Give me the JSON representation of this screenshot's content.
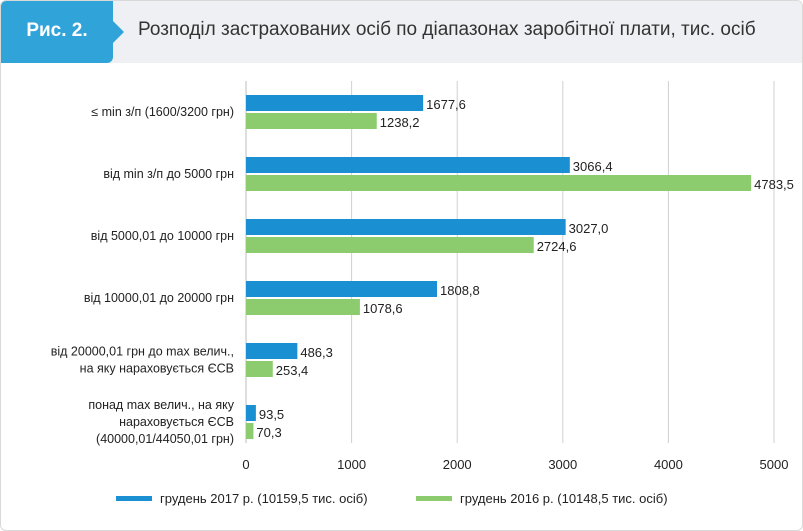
{
  "header": {
    "figure_label": "Рис. 2.",
    "title": "Розподіл застрахованих осіб по діапазонах заробітної плати, тис. осіб"
  },
  "chart_data": {
    "type": "bar",
    "orientation": "horizontal",
    "categories": [
      [
        "≤ min з/п (1600/3200 грн)"
      ],
      [
        "від min з/п до 5000 грн"
      ],
      [
        "від 5000,01 до 10000 грн"
      ],
      [
        "від 10000,01 до 20000 грн"
      ],
      [
        "від 20000,01 грн до max велич.,",
        "на яку нараховується ЄСВ"
      ],
      [
        "понад max велич., на яку",
        "нараховується ЄСВ",
        "(40000,01/44050,01 грн)"
      ]
    ],
    "series": [
      {
        "name": "грудень 2017 р. (10159,5 тис. осіб)",
        "color": "#1a8fd1",
        "values": [
          1677.6,
          3066.4,
          3027.0,
          1808.8,
          486.3,
          93.5
        ],
        "labels": [
          "1677,6",
          "3066,4",
          "3027,0",
          "1808,8",
          "486,3",
          "93,5"
        ]
      },
      {
        "name": "грудень 2016 р. (10148,5 тис. осіб)",
        "color": "#8ccb6e",
        "values": [
          1238.2,
          4783.5,
          2724.6,
          1078.6,
          253.4,
          70.3
        ],
        "labels": [
          "1238,2",
          "4783,5",
          "2724,6",
          "1078,6",
          "253,4",
          "70,3"
        ]
      }
    ],
    "xlim": [
      0,
      5000
    ],
    "xticks": [
      0,
      1000,
      2000,
      3000,
      4000,
      5000
    ],
    "xtick_labels": [
      "0",
      "1000",
      "2000",
      "3000",
      "4000",
      "5000"
    ],
    "grid": true,
    "legend_position": "bottom"
  }
}
